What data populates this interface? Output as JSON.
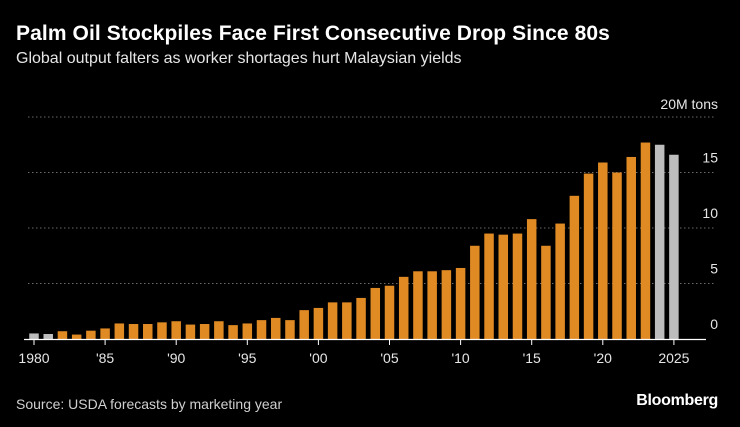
{
  "header": {
    "title": "Palm Oil Stockpiles Face First Consecutive Drop Since 80s",
    "subtitle": "Global output falters as worker shortages hurt Malaysian yields"
  },
  "footer": {
    "source": "Source: USDA forecasts by marketing year",
    "brand": "Bloomberg"
  },
  "colors": {
    "actual": "#e08a24",
    "forecast": "#bdbdbd",
    "grid": "#6a6a6a",
    "text": "#ffffff"
  },
  "chart_data": {
    "type": "bar",
    "title": "Palm Oil Stockpiles Face First Consecutive Drop Since 80s",
    "subtitle": "Global output falters as worker shortages hurt Malaysian yields",
    "unit_label": "20M tons",
    "ylim": [
      0,
      20
    ],
    "y_ticks": [
      0,
      5,
      10,
      15
    ],
    "x_ticks": [
      {
        "year": 1980,
        "label": "1980"
      },
      {
        "year": 1985,
        "label": "'85"
      },
      {
        "year": 1990,
        "label": "'90"
      },
      {
        "year": 1995,
        "label": "'95"
      },
      {
        "year": 2000,
        "label": "'00"
      },
      {
        "year": 2005,
        "label": "'05"
      },
      {
        "year": 2010,
        "label": "'10"
      },
      {
        "year": 2015,
        "label": "'15"
      },
      {
        "year": 2020,
        "label": "'20"
      },
      {
        "year": 2025,
        "label": "2025"
      }
    ],
    "grid": true,
    "series": [
      {
        "name": "",
        "color": "#bdbdbd",
        "x": [
          1980,
          1981
        ],
        "values": [
          0.5,
          0.45
        ]
      },
      {
        "name": "",
        "color": "#e08a24",
        "x": [
          1982,
          1983,
          1984,
          1985,
          1986,
          1987,
          1988,
          1989,
          1990,
          1991,
          1992,
          1993,
          1994,
          1995,
          1996,
          1997,
          1998,
          1999,
          2000,
          2001,
          2002,
          2003,
          2004,
          2005,
          2006,
          2007,
          2008,
          2009,
          2010,
          2011,
          2012,
          2013,
          2014,
          2015,
          2016,
          2017,
          2018,
          2019,
          2020,
          2021,
          2022,
          2023
        ],
        "values": [
          0.7,
          0.4,
          0.75,
          0.95,
          1.4,
          1.35,
          1.35,
          1.5,
          1.6,
          1.3,
          1.35,
          1.6,
          1.25,
          1.4,
          1.7,
          1.9,
          1.7,
          2.6,
          2.8,
          3.3,
          3.3,
          3.7,
          4.6,
          4.8,
          5.6,
          6.1,
          6.1,
          6.2,
          6.4,
          8.4,
          9.5,
          9.4,
          9.5,
          10.8,
          8.4,
          10.4,
          12.9,
          14.9,
          15.9,
          15.0,
          16.4,
          17.7
        ]
      },
      {
        "name": "",
        "color": "#bdbdbd",
        "x": [
          2024,
          2025
        ],
        "values": [
          17.5,
          16.6
        ]
      }
    ]
  }
}
